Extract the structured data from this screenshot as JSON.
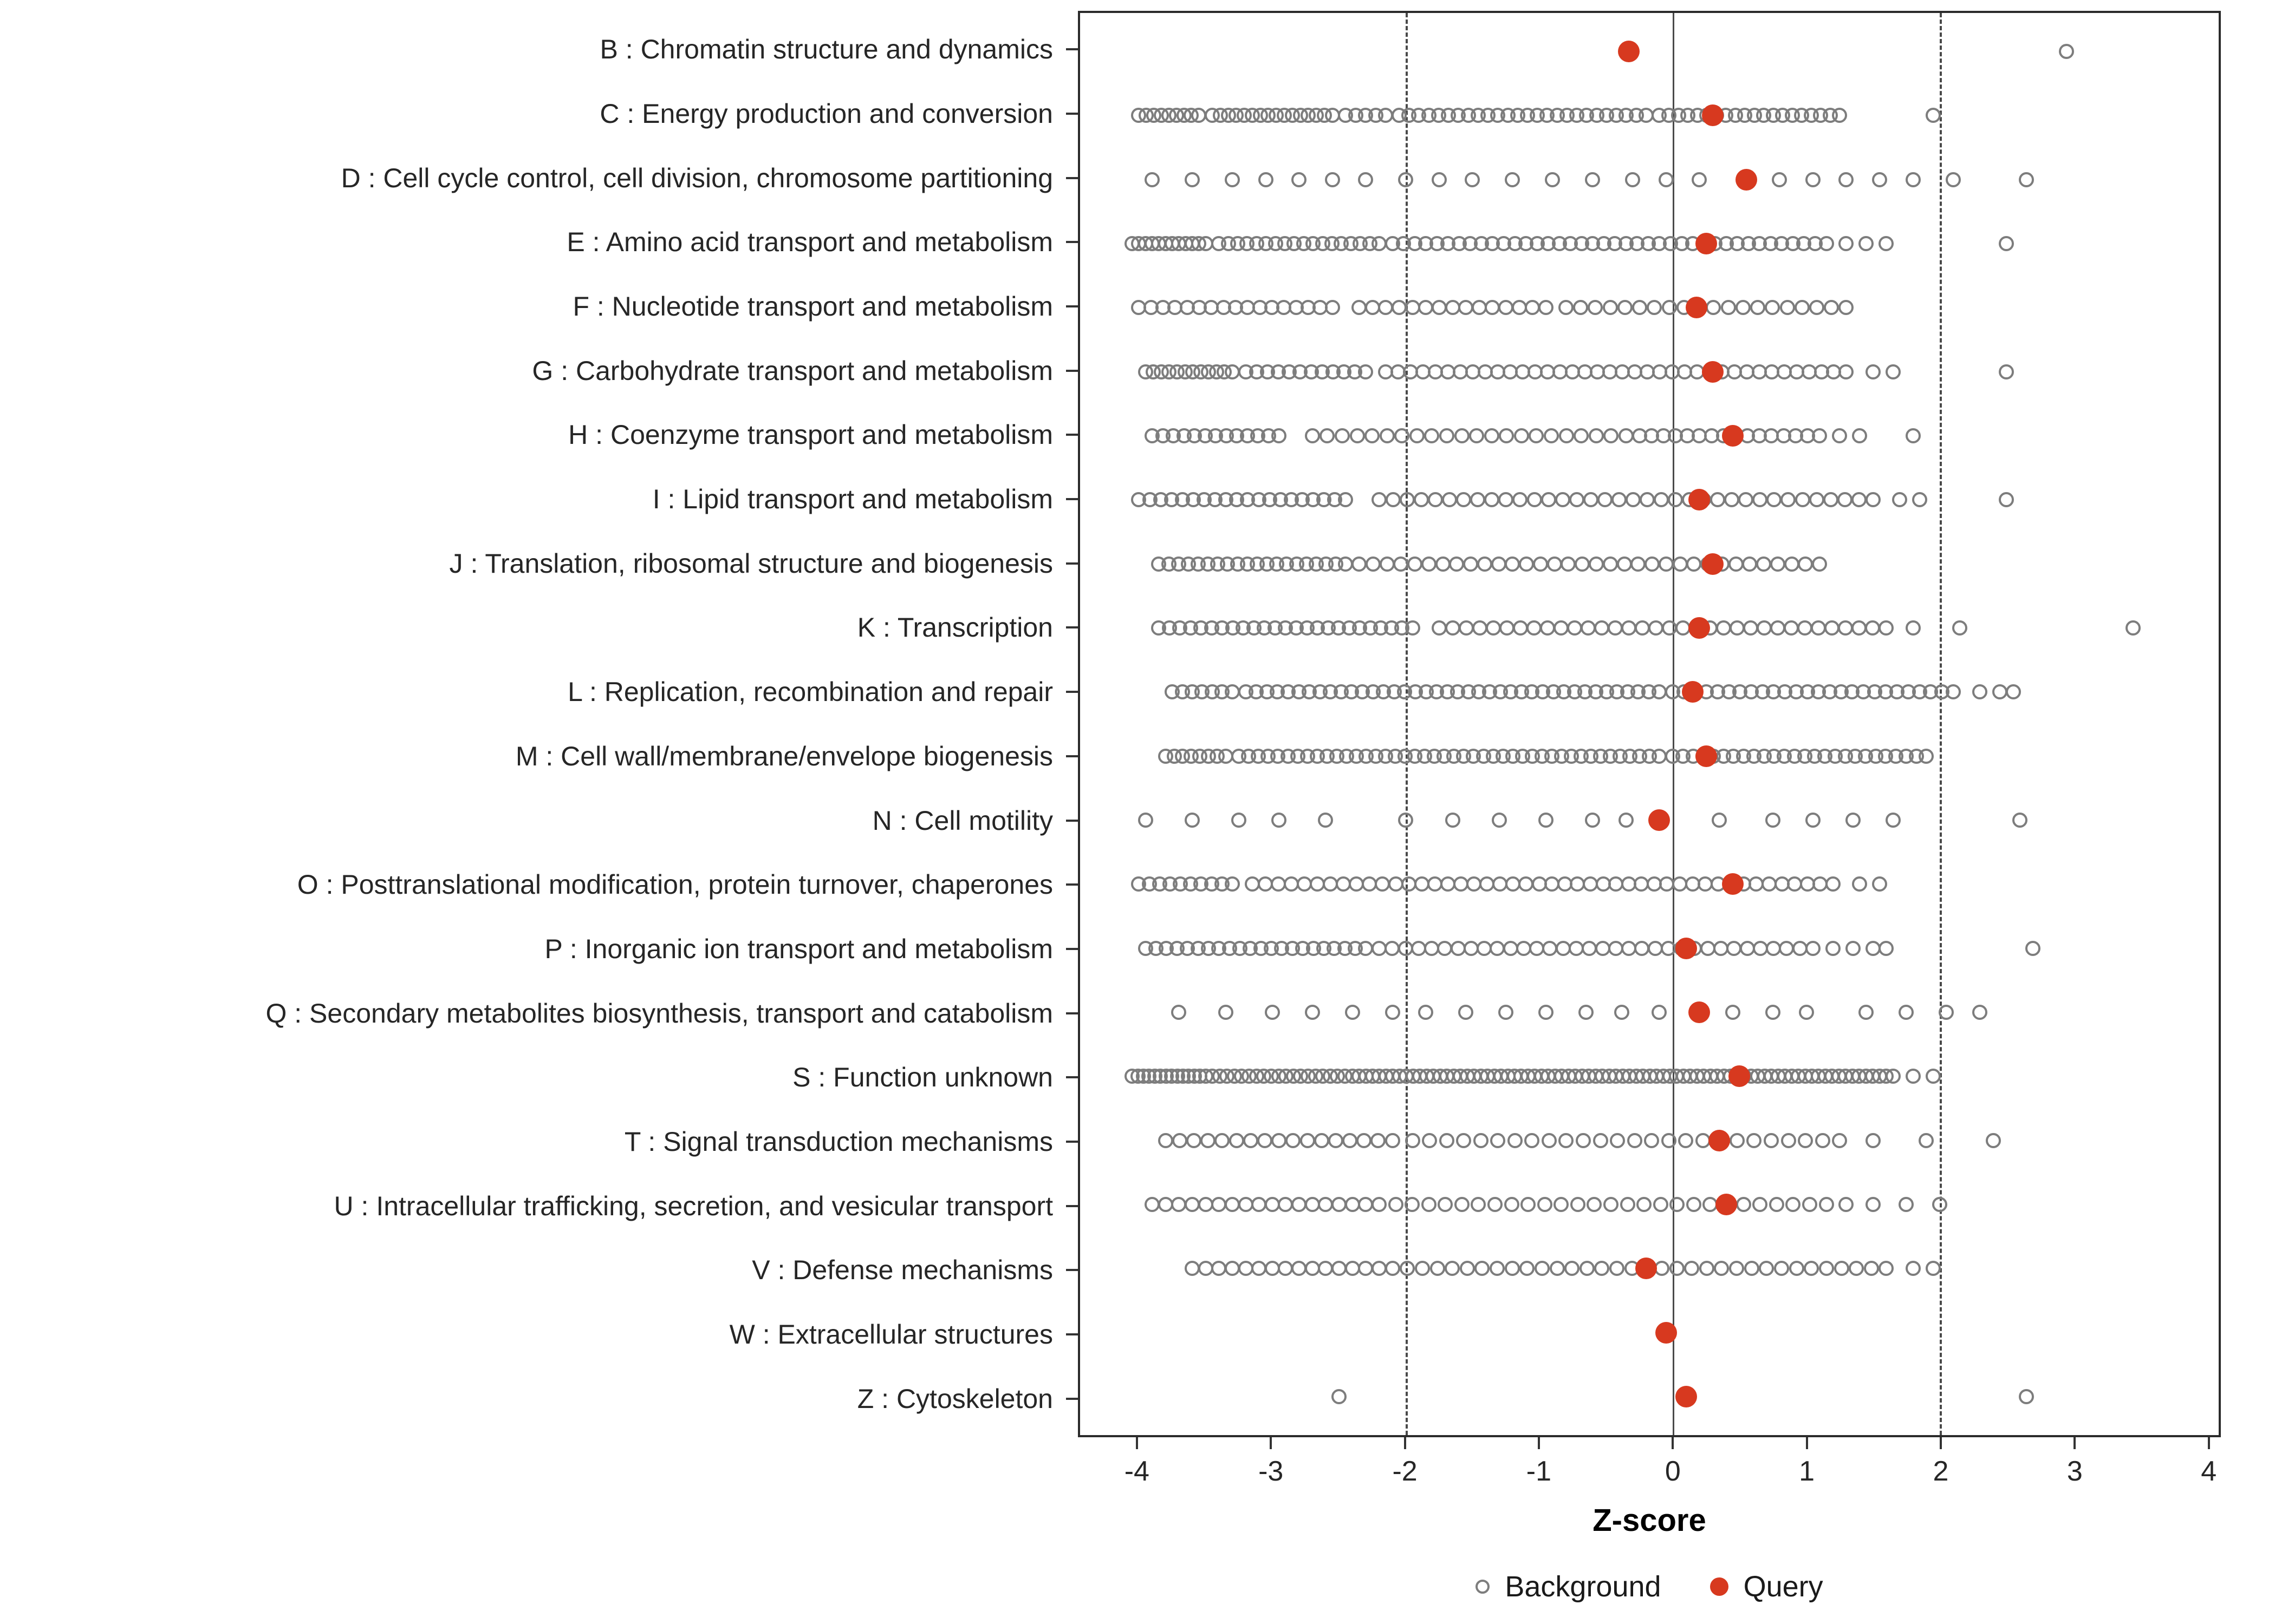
{
  "chart_data": {
    "type": "scatter",
    "title": "",
    "xlabel": "Z-score",
    "xlim": [
      -4.44,
      4.09
    ],
    "x_ticks": [
      -4,
      -3,
      -2,
      -1,
      0,
      1,
      2,
      3,
      4
    ],
    "x_tick_labels": [
      "-4",
      "-3",
      "-2",
      "-1",
      "0",
      "1",
      "2",
      "3",
      "4"
    ],
    "reference_lines": {
      "solid": [
        0
      ],
      "dashed": [
        -2,
        2
      ]
    },
    "grid": false,
    "legend_position": "bottom",
    "legend": [
      {
        "label": "Background",
        "type": "open-circle",
        "color": "#7d7d7d"
      },
      {
        "label": "Query",
        "type": "filled-circle",
        "color": "#d7391f"
      }
    ],
    "colors": {
      "background_stroke": "#7d7d7d",
      "query_fill": "#d7391f",
      "axis": "#2b2b2b"
    },
    "categories": [
      {
        "label": "B : Chromatin structure and dynamics",
        "query": -0.33,
        "bg_segments": [],
        "bg_points": [
          2.95
        ]
      },
      {
        "label": "C : Energy production and conversion",
        "query": 0.3,
        "bg_segments": [
          [
            -4.0,
            -3.55,
            9
          ],
          [
            -3.45,
            -2.55,
            16
          ],
          [
            -2.45,
            -2.15,
            5
          ],
          [
            -2.05,
            -0.2,
            26
          ],
          [
            -0.1,
            1.25,
            20
          ]
        ],
        "bg_points": [
          1.95
        ]
      },
      {
        "label": "D : Cell cycle control, cell division, chromosome partitioning",
        "query": 0.55,
        "bg_segments": [],
        "bg_points": [
          -3.9,
          -3.6,
          -3.3,
          -3.05,
          -2.8,
          -2.55,
          -2.3,
          -2.0,
          -1.75,
          -1.5,
          -1.2,
          -0.9,
          -0.6,
          -0.3,
          -0.05,
          0.2,
          0.8,
          1.05,
          1.3,
          1.55,
          1.8,
          2.1,
          2.65
        ]
      },
      {
        "label": "E : Amino acid transport and metabolism",
        "query": 0.25,
        "bg_segments": [
          [
            -4.05,
            -3.5,
            12
          ],
          [
            -3.4,
            -2.2,
            18
          ],
          [
            -2.1,
            1.15,
            40
          ]
        ],
        "bg_points": [
          1.3,
          1.45,
          1.6,
          2.5
        ]
      },
      {
        "label": "F : Nucleotide transport and metabolism",
        "query": 0.18,
        "bg_segments": [
          [
            -4.0,
            -2.55,
            17
          ],
          [
            -2.35,
            -0.95,
            15
          ],
          [
            -0.8,
            1.3,
            20
          ]
        ],
        "bg_points": []
      },
      {
        "label": "G : Carbohydrate transport and metabolism",
        "query": 0.3,
        "bg_segments": [
          [
            -3.95,
            -3.3,
            12
          ],
          [
            -3.2,
            -2.3,
            12
          ],
          [
            -2.15,
            1.3,
            38
          ]
        ],
        "bg_points": [
          1.5,
          1.65,
          2.5
        ]
      },
      {
        "label": "H : Coenzyme transport and metabolism",
        "query": 0.45,
        "bg_segments": [
          [
            -3.9,
            -2.95,
            13
          ],
          [
            -2.7,
            -0.35,
            22
          ],
          [
            -0.25,
            1.1,
            16
          ]
        ],
        "bg_points": [
          1.25,
          1.4,
          1.8
        ]
      },
      {
        "label": "I : Lipid transport and metabolism",
        "query": 0.2,
        "bg_segments": [
          [
            -4.0,
            -2.45,
            20
          ],
          [
            -2.2,
            1.5,
            36
          ]
        ],
        "bg_points": [
          1.7,
          1.85,
          2.5
        ]
      },
      {
        "label": "J : Translation, ribosomal structure and biogenesis",
        "query": 0.3,
        "bg_segments": [
          [
            -3.85,
            -2.45,
            20
          ],
          [
            -2.35,
            1.1,
            34
          ]
        ],
        "bg_points": []
      },
      {
        "label": "K : Transcription",
        "query": 0.2,
        "bg_segments": [
          [
            -3.85,
            -1.95,
            25
          ],
          [
            -1.75,
            1.6,
            34
          ]
        ],
        "bg_points": [
          1.8,
          2.15,
          3.45
        ]
      },
      {
        "label": "L : Replication, recombination and repair",
        "query": 0.15,
        "bg_segments": [
          [
            -3.75,
            -3.3,
            7
          ],
          [
            -3.2,
            -0.1,
            40
          ],
          [
            0.0,
            2.1,
            26
          ]
        ],
        "bg_points": [
          2.3,
          2.45,
          2.55
        ]
      },
      {
        "label": "M : Cell wall/membrane/envelope biogenesis",
        "query": 0.25,
        "bg_segments": [
          [
            -3.8,
            -3.35,
            8
          ],
          [
            -3.25,
            -0.1,
            44
          ],
          [
            0.0,
            1.9,
            26
          ]
        ],
        "bg_points": []
      },
      {
        "label": "N : Cell motility",
        "query": -0.1,
        "bg_segments": [],
        "bg_points": [
          -3.95,
          -3.6,
          -3.25,
          -2.95,
          -2.6,
          -2.0,
          -1.65,
          -1.3,
          -0.95,
          -0.6,
          -0.35,
          0.35,
          0.75,
          1.05,
          1.35,
          1.65,
          2.6
        ]
      },
      {
        "label": "O : Posttranslational modification, protein turnover, chaperones",
        "query": 0.45,
        "bg_segments": [
          [
            -4.0,
            -3.3,
            10
          ],
          [
            -3.15,
            -1.1,
            22
          ],
          [
            -1.0,
            1.2,
            24
          ]
        ],
        "bg_points": [
          1.4,
          1.55
        ]
      },
      {
        "label": "P : Inorganic ion transport and metabolism",
        "query": 0.1,
        "bg_segments": [
          [
            -3.95,
            -2.3,
            22
          ],
          [
            -2.2,
            1.05,
            34
          ]
        ],
        "bg_points": [
          1.2,
          1.35,
          1.5,
          1.6,
          2.7
        ]
      },
      {
        "label": "Q : Secondary metabolites biosynthesis, transport and catabolism",
        "query": 0.2,
        "bg_segments": [],
        "bg_points": [
          -3.7,
          -3.35,
          -3.0,
          -2.7,
          -2.4,
          -2.1,
          -1.85,
          -1.55,
          -1.25,
          -0.95,
          -0.65,
          -0.38,
          -0.1,
          0.45,
          0.75,
          1.0,
          1.45,
          1.75,
          2.05,
          2.3
        ]
      },
      {
        "label": "S : Function unknown",
        "query": 0.5,
        "bg_segments": [
          [
            -4.05,
            -3.5,
            14
          ],
          [
            -3.45,
            -2.4,
            20
          ],
          [
            -2.35,
            1.65,
            80
          ]
        ],
        "bg_points": [
          1.8,
          1.95
        ]
      },
      {
        "label": "T : Signal transduction mechanisms",
        "query": 0.35,
        "bg_segments": [
          [
            -3.8,
            -2.1,
            17
          ],
          [
            -1.95,
            1.25,
            26
          ]
        ],
        "bg_points": [
          1.5,
          1.9,
          2.4
        ]
      },
      {
        "label": "U : Intracellular trafficking, secretion, and vesicular transport",
        "query": 0.4,
        "bg_segments": [
          [
            -3.9,
            -2.3,
            17
          ],
          [
            -2.2,
            1.15,
            28
          ]
        ],
        "bg_points": [
          1.3,
          1.5,
          1.75,
          2.0
        ]
      },
      {
        "label": "V : Defense mechanisms",
        "query": -0.2,
        "bg_segments": [
          [
            -3.6,
            -2.2,
            15
          ],
          [
            -2.1,
            1.6,
            34
          ]
        ],
        "bg_points": [
          1.8,
          1.95
        ]
      },
      {
        "label": "W : Extracellular structures",
        "query": -0.05,
        "bg_segments": [],
        "bg_points": []
      },
      {
        "label": "Z : Cytoskeleton",
        "query": 0.1,
        "bg_segments": [],
        "bg_points": [
          -2.5,
          2.65
        ]
      }
    ]
  }
}
